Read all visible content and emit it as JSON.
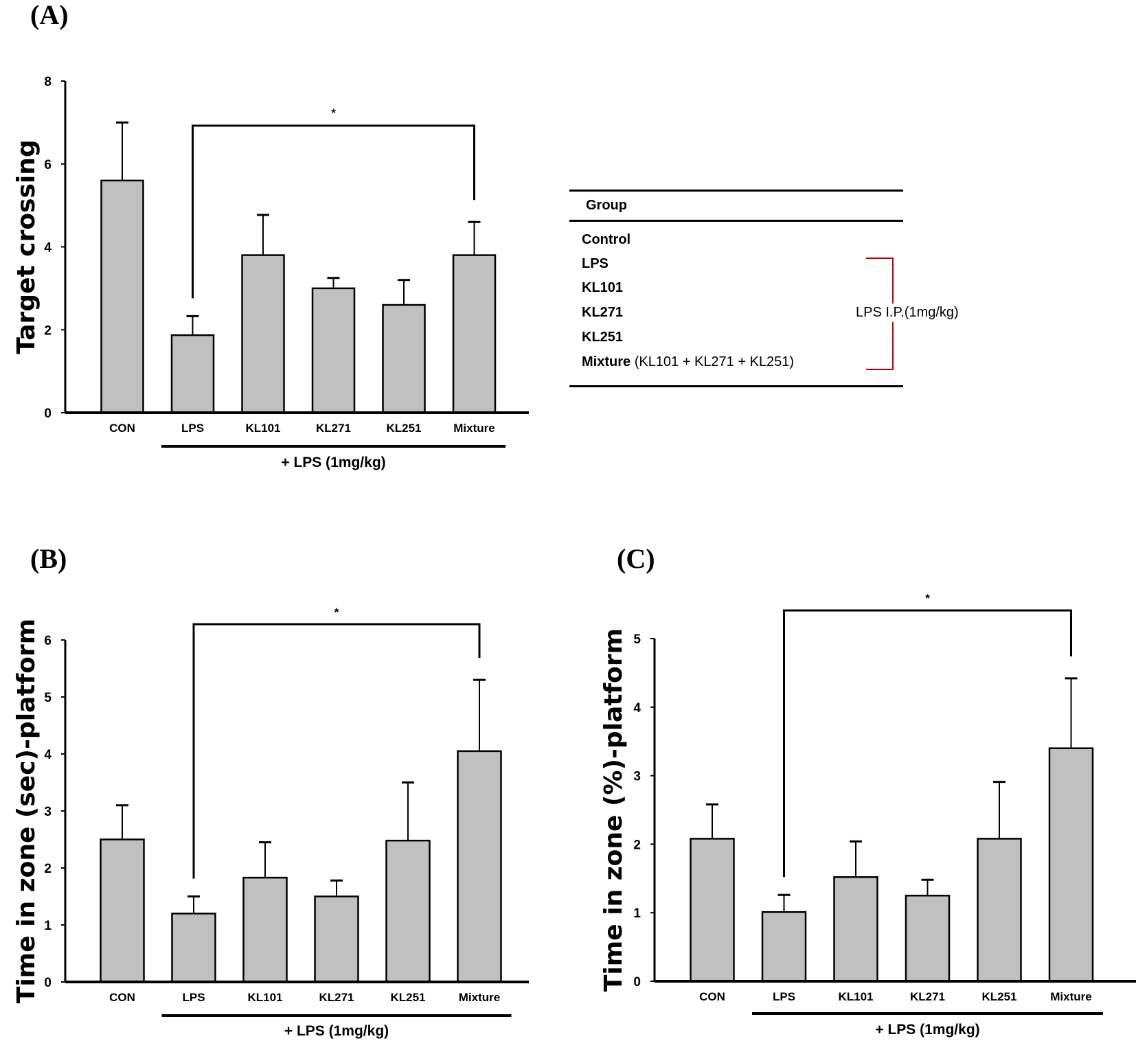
{
  "figure": {
    "panel_labels": [
      "(A)",
      "(B)",
      "(C)"
    ]
  },
  "legend_table": {
    "header": "Group",
    "rows": [
      {
        "name": "Control",
        "detail": ""
      },
      {
        "name": "LPS",
        "detail": ""
      },
      {
        "name": "KL101",
        "detail": ""
      },
      {
        "name": "KL271",
        "detail": ""
      },
      {
        "name": "KL251",
        "detail": ""
      },
      {
        "name": "Mixture",
        "detail": "(KL101 + KL271 + KL251)"
      }
    ],
    "bracket_label": "LPS I.P.(1mg/kg)",
    "bracket_color": "#c00000"
  },
  "chart_data": [
    {
      "type": "bar",
      "panel": "(A)",
      "title": "",
      "xlabel": "",
      "ylabel": "Target crossing",
      "categories": [
        "CON",
        "LPS",
        "KL101",
        "KL271",
        "KL251",
        "Mixture"
      ],
      "values": [
        5.6,
        1.87,
        3.8,
        3.0,
        2.6,
        3.8
      ],
      "error_upper": [
        7.0,
        2.33,
        4.77,
        3.25,
        3.2,
        4.6
      ],
      "ylim": [
        0,
        8
      ],
      "yticks": [
        0,
        2,
        4,
        6,
        8
      ],
      "grid": false,
      "bar_color": "#c0c0c0",
      "group_annotation": "+ LPS (1mg/kg)",
      "group_span": [
        "LPS",
        "Mixture"
      ],
      "significance": {
        "from": "LPS",
        "to": "Mixture",
        "label": "*"
      }
    },
    {
      "type": "bar",
      "panel": "(B)",
      "title": "",
      "xlabel": "",
      "ylabel": "Time in zone (sec)-platform",
      "categories": [
        "CON",
        "LPS",
        "KL101",
        "KL271",
        "KL251",
        "Mixture"
      ],
      "values": [
        2.5,
        1.2,
        1.83,
        1.5,
        2.48,
        4.05
      ],
      "error_upper": [
        3.1,
        1.5,
        2.45,
        1.78,
        3.5,
        5.3
      ],
      "ylim": [
        0,
        6
      ],
      "yticks": [
        0,
        1,
        2,
        3,
        4,
        5,
        6
      ],
      "grid": false,
      "bar_color": "#c0c0c0",
      "group_annotation": "+ LPS (1mg/kg)",
      "group_span": [
        "LPS",
        "Mixture"
      ],
      "significance": {
        "from": "LPS",
        "to": "Mixture",
        "label": "*"
      }
    },
    {
      "type": "bar",
      "panel": "(C)",
      "title": "",
      "xlabel": "",
      "ylabel": "Time in zone (%)-platform",
      "categories": [
        "CON",
        "LPS",
        "KL101",
        "KL271",
        "KL251",
        "Mixture"
      ],
      "values": [
        2.08,
        1.01,
        1.52,
        1.25,
        2.08,
        3.4
      ],
      "error_upper": [
        2.58,
        1.26,
        2.04,
        1.48,
        2.91,
        4.42
      ],
      "ylim": [
        0,
        5
      ],
      "yticks": [
        0,
        1,
        2,
        3,
        4,
        5
      ],
      "grid": false,
      "bar_color": "#c0c0c0",
      "group_annotation": "+ LPS (1mg/kg)",
      "group_span": [
        "LPS",
        "Mixture"
      ],
      "significance": {
        "from": "LPS",
        "to": "Mixture",
        "label": "*"
      }
    }
  ]
}
